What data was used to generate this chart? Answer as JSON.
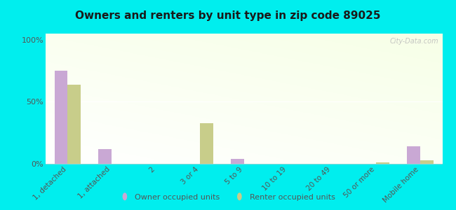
{
  "title": "Owners and renters by unit type in zip code 89025",
  "categories": [
    "1, detached",
    "1, attached",
    "2",
    "3 or 4",
    "5 to 9",
    "10 to 19",
    "20 to 49",
    "50 or more",
    "Mobile home"
  ],
  "owner_values": [
    75,
    12,
    0,
    0,
    4,
    0,
    0,
    0,
    14
  ],
  "renter_values": [
    64,
    0,
    0,
    33,
    0,
    0,
    0,
    1,
    3
  ],
  "owner_color": "#c9a8d4",
  "renter_color": "#c8cd8a",
  "outer_bg": "#00eeee",
  "ylabel_ticks": [
    "0%",
    "50%",
    "100%"
  ],
  "ytick_values": [
    0,
    50,
    100
  ],
  "ylim": [
    0,
    105
  ],
  "bar_width": 0.3,
  "watermark": "City-Data.com",
  "legend_owner": "Owner occupied units",
  "legend_renter": "Renter occupied units",
  "bg_color_topleft": "#f5fff0",
  "bg_color_topright": "#d8eec8",
  "bg_color_bottomleft": "#ffffff",
  "bg_color_bottomright": "#eef8e0"
}
